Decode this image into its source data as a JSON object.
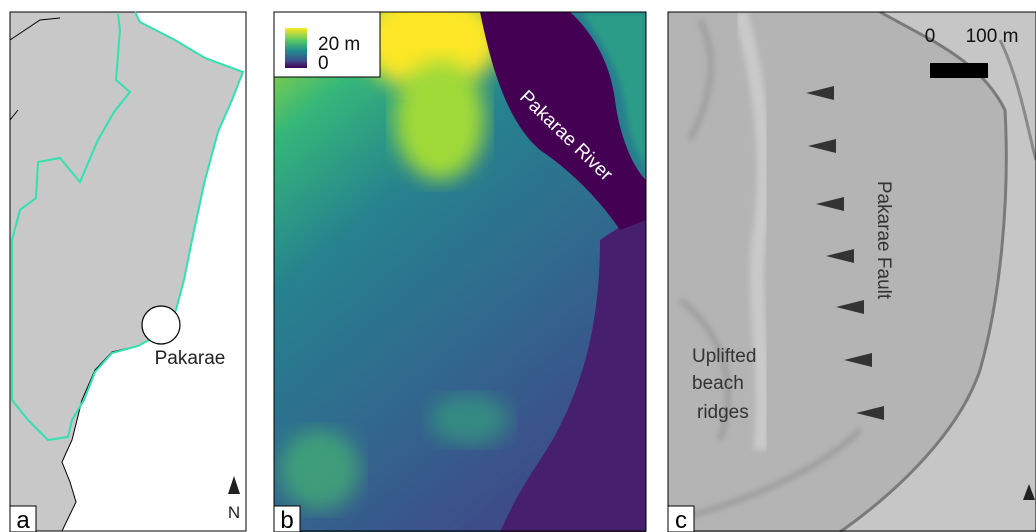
{
  "panels": [
    {
      "label": "a",
      "place": "Pakarae",
      "north": "N"
    },
    {
      "label": "b",
      "legend": {
        "max": "20 m",
        "min": "0"
      },
      "river": "Pakarae River"
    },
    {
      "label": "c",
      "scale": {
        "start": "0",
        "end": "100 m"
      },
      "fault": "Pakarae Fault",
      "ridges": [
        "Uplifted",
        "beach",
        "ridges"
      ]
    }
  ]
}
